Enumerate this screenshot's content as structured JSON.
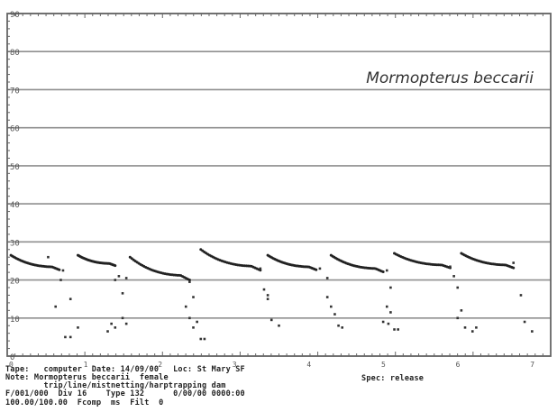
{
  "chart_data": {
    "type": "scatter",
    "title": "Mormopterus beccarii",
    "xlabel": "",
    "ylabel": "",
    "ylim": [
      0,
      90
    ],
    "y_ticks": [
      "0",
      "10",
      "20",
      "30",
      "40",
      "50",
      "60",
      "70",
      "80",
      "90"
    ],
    "x_ticks": [
      "0",
      "1",
      "2",
      "3",
      "4",
      "5",
      "6",
      "7"
    ],
    "xlim": [
      0,
      7.3
    ],
    "grid": true,
    "series": [
      {
        "calls": [
          {
            "x_start": 0.05,
            "x_end": 0.7,
            "f_start": 26.5,
            "f_end": 23.0
          },
          {
            "x_start": 0.95,
            "x_end": 1.45,
            "f_start": 26.5,
            "f_end": 24.0
          },
          {
            "x_start": 1.65,
            "x_end": 2.45,
            "f_start": 26.0,
            "f_end": 20.5
          },
          {
            "x_start": 2.6,
            "x_end": 3.4,
            "f_start": 28.0,
            "f_end": 23.0
          },
          {
            "x_start": 3.5,
            "x_end": 4.15,
            "f_start": 26.5,
            "f_end": 23.0
          },
          {
            "x_start": 4.35,
            "x_end": 5.05,
            "f_start": 26.5,
            "f_end": 22.5
          },
          {
            "x_start": 5.2,
            "x_end": 5.95,
            "f_start": 27.0,
            "f_end": 23.5
          },
          {
            "x_start": 6.1,
            "x_end": 6.8,
            "f_start": 27.0,
            "f_end": 23.5
          }
        ],
        "scatter_points": [
          [
            0.55,
            26.0
          ],
          [
            0.75,
            22.5
          ],
          [
            0.72,
            20.0
          ],
          [
            0.65,
            13.0
          ],
          [
            0.85,
            15.0
          ],
          [
            0.78,
            5.0
          ],
          [
            0.85,
            5.0
          ],
          [
            0.95,
            7.5
          ],
          [
            1.5,
            21.0
          ],
          [
            1.6,
            20.5
          ],
          [
            1.45,
            20.0
          ],
          [
            1.55,
            16.5
          ],
          [
            1.4,
            8.5
          ],
          [
            1.45,
            7.5
          ],
          [
            1.35,
            6.5
          ],
          [
            1.6,
            8.5
          ],
          [
            1.55,
            10.0
          ],
          [
            2.45,
            19.5
          ],
          [
            2.5,
            15.5
          ],
          [
            2.4,
            13.0
          ],
          [
            2.45,
            10.0
          ],
          [
            2.55,
            9.0
          ],
          [
            2.5,
            7.5
          ],
          [
            2.6,
            4.5
          ],
          [
            2.65,
            4.5
          ],
          [
            3.4,
            23.0
          ],
          [
            3.45,
            17.5
          ],
          [
            3.5,
            15.0
          ],
          [
            3.5,
            16.0
          ],
          [
            3.55,
            9.5
          ],
          [
            3.65,
            8.0
          ],
          [
            4.2,
            23.0
          ],
          [
            4.3,
            20.5
          ],
          [
            4.3,
            15.5
          ],
          [
            4.35,
            13.0
          ],
          [
            4.4,
            11.0
          ],
          [
            4.45,
            8.0
          ],
          [
            4.5,
            7.5
          ],
          [
            5.1,
            22.5
          ],
          [
            5.15,
            18.0
          ],
          [
            5.1,
            13.0
          ],
          [
            5.15,
            11.5
          ],
          [
            5.05,
            9.0
          ],
          [
            5.12,
            8.5
          ],
          [
            5.2,
            7.0
          ],
          [
            5.25,
            7.0
          ],
          [
            5.95,
            23.5
          ],
          [
            6.0,
            21.0
          ],
          [
            6.05,
            18.0
          ],
          [
            6.1,
            12.0
          ],
          [
            6.05,
            10.0
          ],
          [
            6.15,
            7.5
          ],
          [
            6.25,
            6.5
          ],
          [
            6.3,
            7.5
          ],
          [
            6.8,
            24.5
          ],
          [
            6.9,
            16.0
          ],
          [
            6.95,
            9.0
          ],
          [
            7.05,
            6.5
          ]
        ]
      }
    ]
  },
  "footer": {
    "line1": "Tape:   computer  Date: 14/09/00   Loc: St Mary SF",
    "line1_right": "Spec: release",
    "line2": "Note: Mormopterus beccarii  female",
    "line3": "        trip/line/mistnetting/harptrapping dam",
    "line4": "F/001/000  Div 16    Type 132      0/00/00 0000:00",
    "line5": "100.00/100.00  Fcomp  ms  Filt  0"
  }
}
